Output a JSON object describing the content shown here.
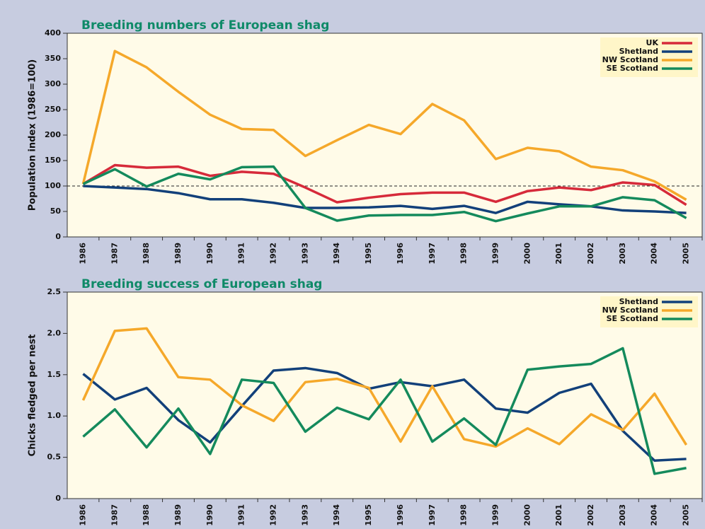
{
  "chart_data": [
    {
      "type": "line",
      "title": "Breeding numbers of European shag",
      "y_label": "Population index (1986=100)",
      "categories": [
        "1986",
        "1987",
        "1988",
        "1989",
        "1990",
        "1991",
        "1992",
        "1993",
        "1994",
        "1995",
        "1996",
        "1997",
        "1998",
        "1999",
        "2000",
        "2001",
        "2002",
        "2003",
        "2004",
        "2005"
      ],
      "series": [
        {
          "name": "UK",
          "color": "#d62a3a",
          "values": [
            104,
            141,
            136,
            138,
            120,
            128,
            124,
            97,
            68,
            77,
            84,
            87,
            87,
            69,
            90,
            97,
            92,
            107,
            102,
            63
          ]
        },
        {
          "name": "Shetland",
          "color": "#12407a",
          "values": [
            100,
            97,
            94,
            86,
            74,
            74,
            67,
            57,
            57,
            58,
            61,
            55,
            61,
            47,
            69,
            64,
            60,
            52,
            50,
            47
          ]
        },
        {
          "name": "NW Scotland",
          "color": "#f5a82a",
          "values": [
            104,
            365,
            333,
            285,
            240,
            212,
            210,
            159,
            190,
            220,
            202,
            261,
            229,
            153,
            175,
            168,
            138,
            131,
            109,
            73
          ]
        },
        {
          "name": "SE Scotland",
          "color": "#148a5c",
          "values": [
            104,
            133,
            99,
            124,
            113,
            137,
            138,
            57,
            32,
            42,
            43,
            43,
            49,
            31,
            46,
            60,
            60,
            78,
            72,
            37
          ]
        }
      ],
      "ylim": [
        0,
        400
      ],
      "yticks": [
        0,
        50,
        100,
        150,
        200,
        250,
        300,
        350,
        400
      ],
      "reference_line": 100,
      "legend": "top-right"
    },
    {
      "type": "line",
      "title": "Breeding success of European shag",
      "y_label": "Chicks fledged per nest",
      "categories": [
        "1986",
        "1987",
        "1988",
        "1989",
        "1990",
        "1991",
        "1992",
        "1993",
        "1994",
        "1995",
        "1996",
        "1997",
        "1998",
        "1999",
        "2000",
        "2001",
        "2002",
        "2003",
        "2004",
        "2005"
      ],
      "series": [
        {
          "name": "Shetland",
          "color": "#12407a",
          "values": [
            1.51,
            1.2,
            1.34,
            0.95,
            0.68,
            1.12,
            1.55,
            1.58,
            1.52,
            1.33,
            1.41,
            1.36,
            1.44,
            1.09,
            1.04,
            1.28,
            1.39,
            0.82,
            0.46,
            0.48
          ]
        },
        {
          "name": "NW Scotland",
          "color": "#f5a82a",
          "values": [
            1.19,
            2.03,
            2.06,
            1.47,
            1.44,
            1.13,
            0.94,
            1.41,
            1.45,
            1.34,
            0.69,
            1.36,
            0.72,
            0.63,
            0.85,
            0.66,
            1.02,
            0.83,
            1.27,
            0.65
          ]
        },
        {
          "name": "SE Scotland",
          "color": "#148a5c",
          "values": [
            0.75,
            1.08,
            0.62,
            1.09,
            0.54,
            1.44,
            1.4,
            0.81,
            1.1,
            0.96,
            1.44,
            0.69,
            0.97,
            0.65,
            1.56,
            1.6,
            1.63,
            1.82,
            0.3,
            0.37
          ]
        }
      ],
      "ylim": [
        0,
        2.5
      ],
      "yticks": [
        0,
        0.5,
        {
          "value": 1,
          "label": "1.0"
        },
        1.5,
        {
          "value": 2,
          "label": "2.0"
        },
        2.5
      ],
      "legend": "top-right"
    }
  ]
}
